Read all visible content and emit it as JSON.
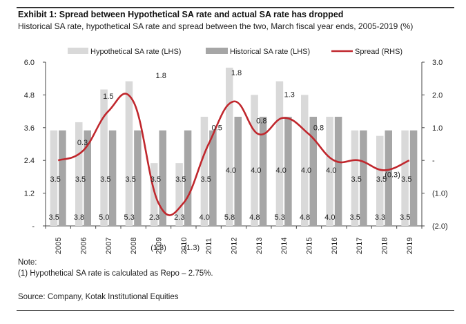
{
  "header": {
    "title": "Exhibit 1: Spread between Hypothetical SA rate and actual SA rate has dropped",
    "subtitle": "Historical SA rate, hypothetical SA rate and spread between the two, March fiscal year ends, 2005-2019 (%)"
  },
  "footer": {
    "note_heading": "Note:",
    "note_line": "(1) Hypothetical SA rate is calculated as Repo – 2.75%.",
    "source": "Source: Company, Kotak Institutional Equities"
  },
  "colors": {
    "hypothetical": "#d9d9d9",
    "historical": "#a6a6a6",
    "spread": "#c0272d"
  },
  "chart_data": {
    "type": "bar",
    "categories": [
      "2005",
      "2006",
      "2007",
      "2008",
      "2009",
      "2010",
      "2011",
      "2012",
      "2013",
      "2014",
      "2015",
      "2016",
      "2017",
      "2018",
      "2019"
    ],
    "series": [
      {
        "name": "Hypothetical SA rate (LHS)",
        "type": "bar",
        "axis": "left",
        "values": [
          3.5,
          3.8,
          5.0,
          5.3,
          2.3,
          2.3,
          4.0,
          5.8,
          4.8,
          5.3,
          4.8,
          4.0,
          3.5,
          3.3,
          3.5
        ],
        "labels": [
          "3.5",
          "3.8",
          "5.0",
          "5.3",
          "2.3",
          "2.3",
          "4.0",
          "5.8",
          "4.8",
          "5.3",
          "4.8",
          "4.0",
          "3.5",
          "3.3",
          "3.5"
        ]
      },
      {
        "name": "Historical SA rate (LHS)",
        "type": "bar",
        "axis": "left",
        "values": [
          3.5,
          3.5,
          3.5,
          3.5,
          3.5,
          3.5,
          3.5,
          4.0,
          4.0,
          4.0,
          4.0,
          4.0,
          3.5,
          3.5,
          3.5
        ],
        "labels": [
          "3.5",
          "3.5",
          "3.5",
          "3.5",
          "3.5",
          "3.5",
          "3.5",
          "4.0",
          "4.0",
          "4.0",
          "4.0",
          "4.0",
          "3.5",
          "3.5",
          "3.5"
        ]
      },
      {
        "name": "Spread (RHS)",
        "type": "line",
        "axis": "right",
        "values": [
          0.0,
          0.3,
          1.5,
          1.8,
          -1.3,
          -1.3,
          0.5,
          1.8,
          0.8,
          1.3,
          0.8,
          0.0,
          0.0,
          -0.3,
          0.0
        ],
        "labels": [
          "",
          "0.3",
          "1.5",
          "1.8",
          "(1.3)",
          "(1.3)",
          "0.5",
          "1.8",
          "0.8",
          "1.3",
          "0.8",
          "",
          "",
          "(0.3)",
          ""
        ]
      }
    ],
    "left_axis": {
      "ylim": [
        0,
        6.0
      ],
      "ticks": [
        0,
        1.2,
        2.4,
        3.6,
        4.8,
        6.0
      ],
      "tick_labels": [
        "-",
        "1.2",
        "2.4",
        "3.6",
        "4.8",
        "6.0"
      ]
    },
    "right_axis": {
      "ylim": [
        -2.0,
        3.0
      ],
      "ticks": [
        -2.0,
        -1.0,
        0,
        1.0,
        2.0,
        3.0
      ],
      "tick_labels": [
        "(2.0)",
        "(1.0)",
        "-",
        "1.0",
        "2.0",
        "3.0"
      ]
    },
    "legend_position": "top",
    "grid": false
  }
}
